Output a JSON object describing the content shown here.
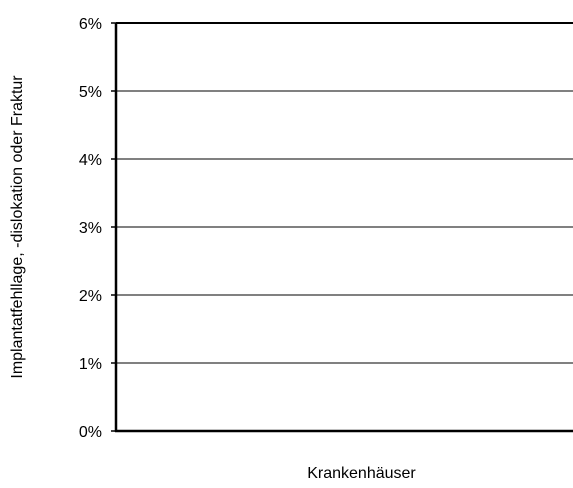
{
  "chart_data": {
    "type": "bar",
    "title": "",
    "xlabel": "Krankenhäuser",
    "ylabel": "Implantatfehllage, -dislokation oder Fraktur",
    "categories": [],
    "series": [],
    "ylim": [
      0,
      0.06
    ],
    "yticks": [
      0,
      0.01,
      0.02,
      0.03,
      0.04,
      0.05,
      0.06
    ],
    "ytick_labels": [
      "0%",
      "1%",
      "2%",
      "3%",
      "4%",
      "5%",
      "6%"
    ],
    "grid": true,
    "legend": "none",
    "colors": {
      "axis": "#000000",
      "grid": "#000000",
      "background": "#ffffff"
    }
  }
}
